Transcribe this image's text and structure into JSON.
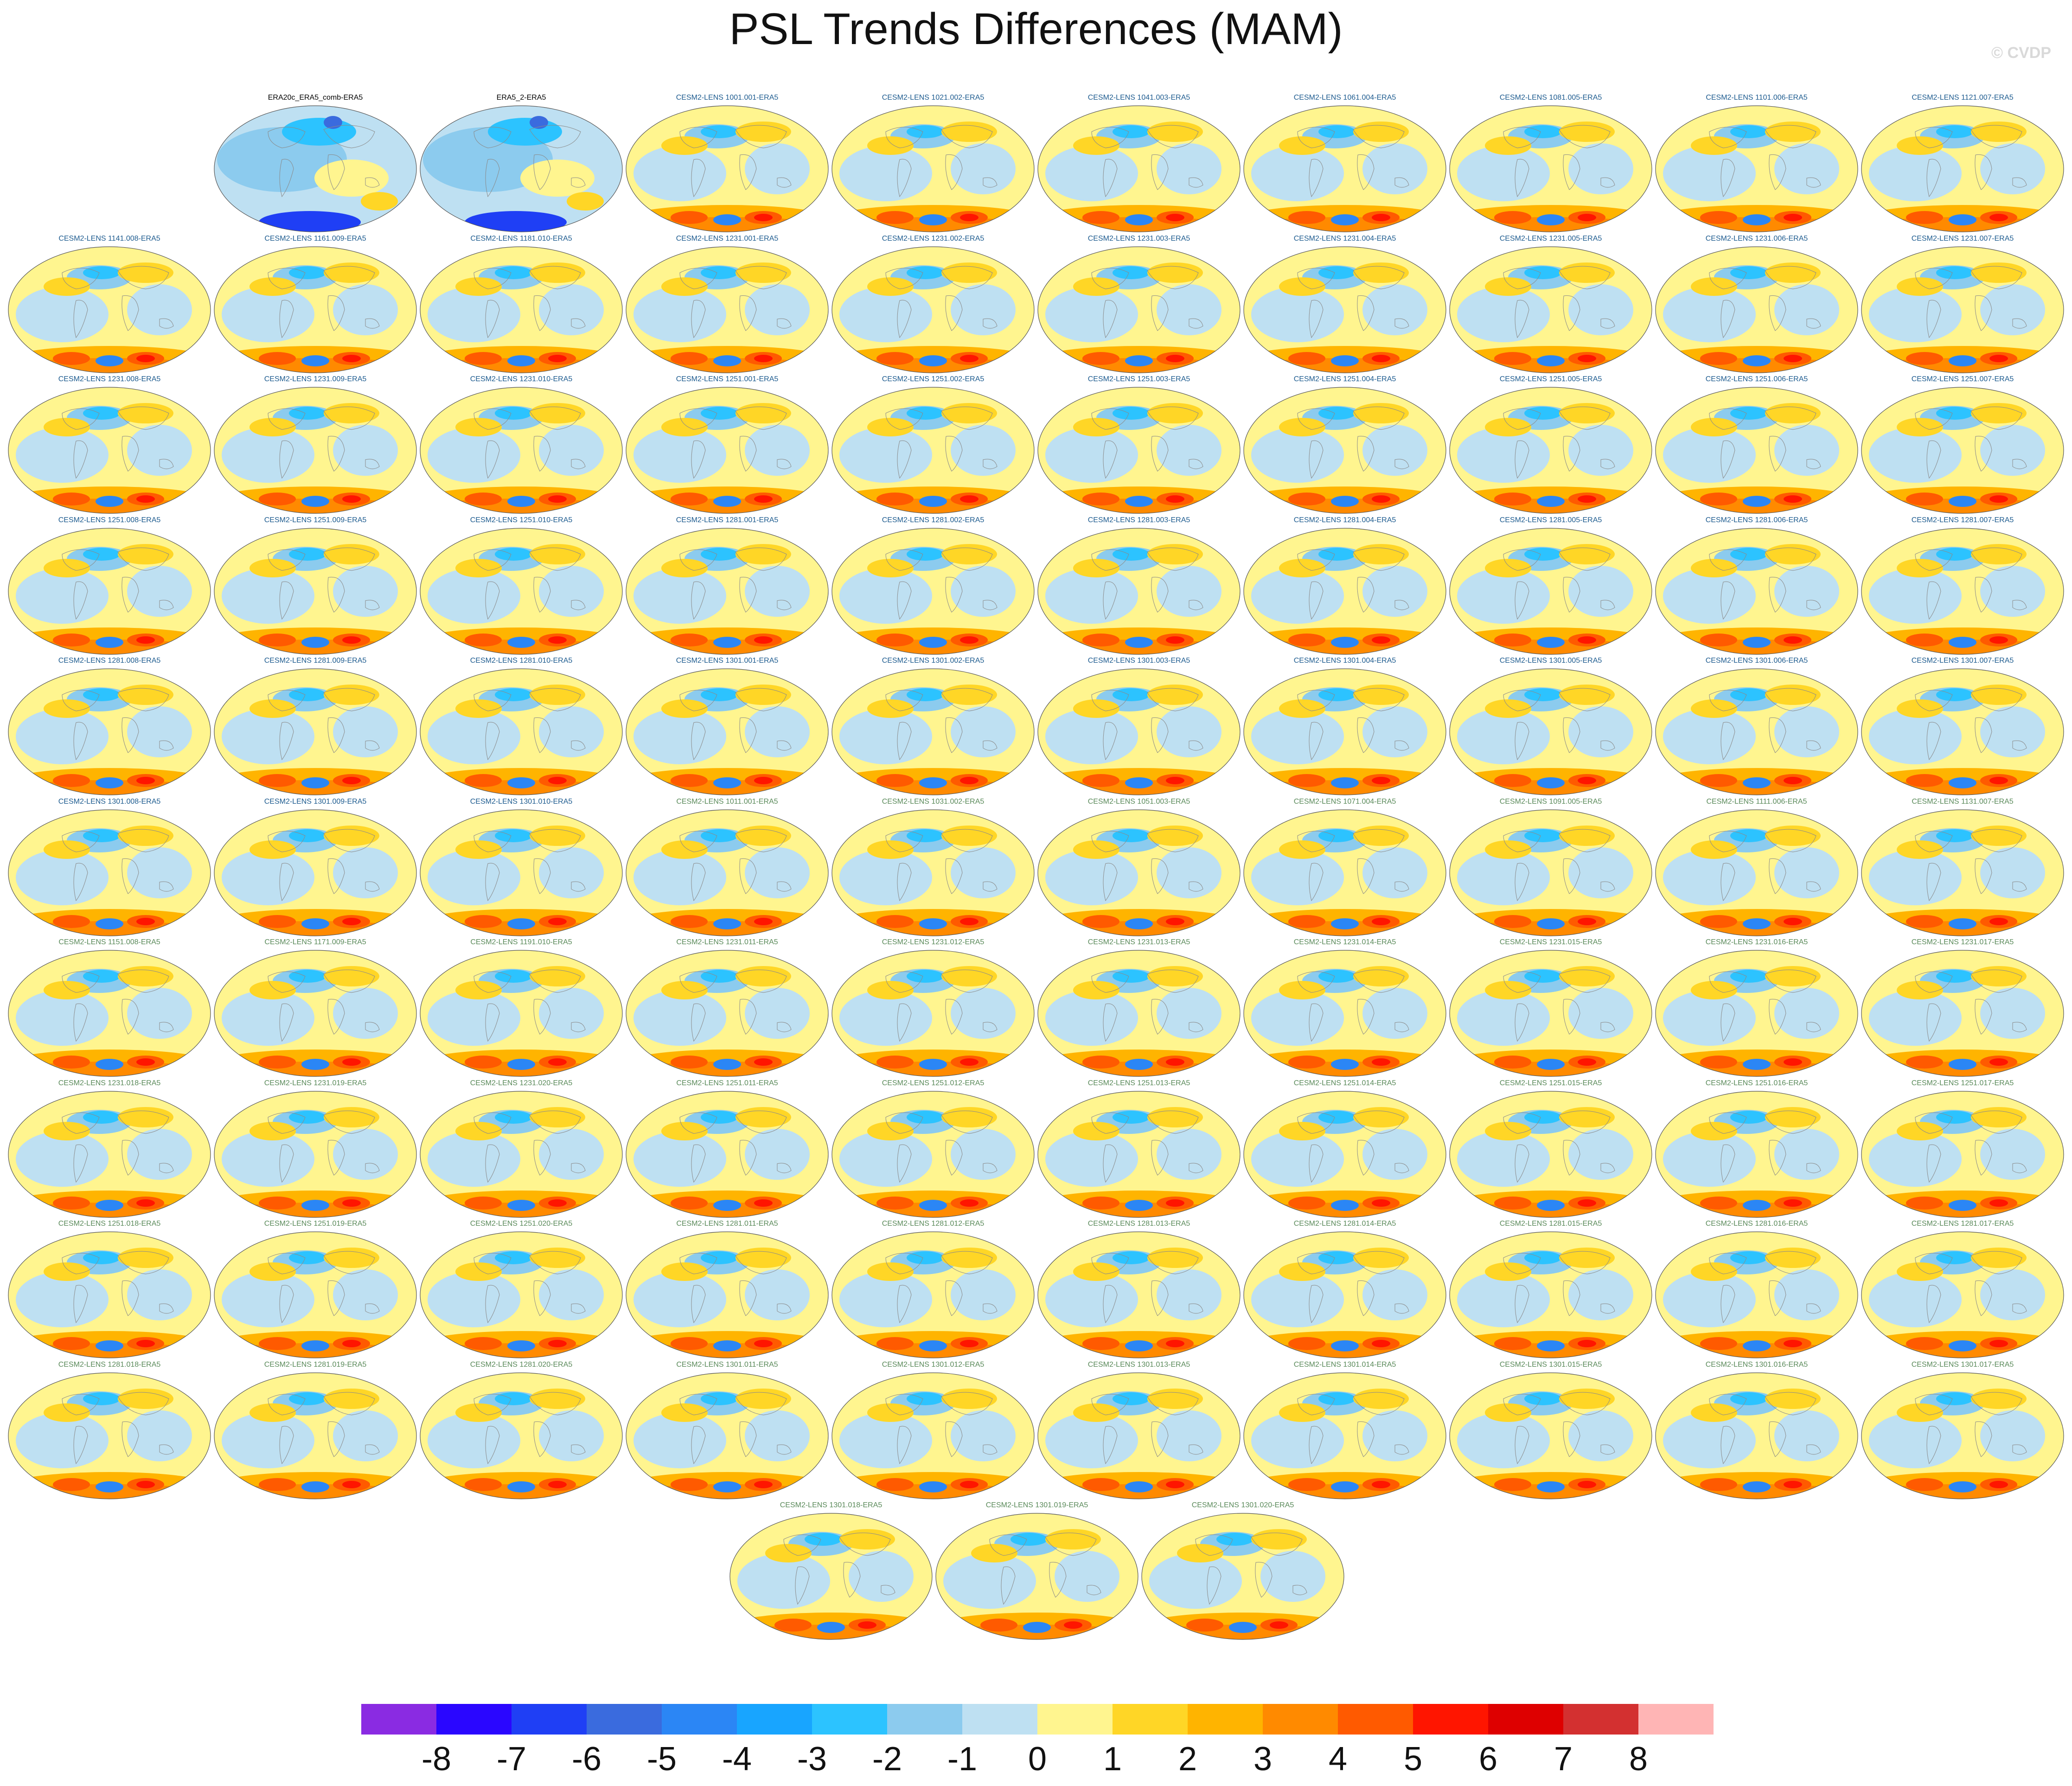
{
  "title": "PSL Trends Differences (MAM)",
  "watermark": "© CVDP",
  "colorbar": {
    "colors": [
      "#8a2be2",
      "#2a06ff",
      "#1f3ff5",
      "#3a6bde",
      "#2b86f5",
      "#18a5ff",
      "#2cc3ff",
      "#8ccbee",
      "#bee0f2",
      "#fff58f",
      "#ffd626",
      "#ffb400",
      "#ff8a00",
      "#ff5a00",
      "#ff1500",
      "#de0000",
      "#d33030",
      "#ffb5b5"
    ],
    "labels": [
      "-8",
      "-7",
      "-6",
      "-5",
      "-4",
      "-3",
      "-2",
      "-1",
      "0",
      "1",
      "2",
      "3",
      "4",
      "5",
      "6",
      "7",
      "8"
    ]
  },
  "panels": [
    {
      "label": "ERA20c_ERA5_comb-ERA5",
      "color": "#000000"
    },
    {
      "label": "ERA5_2-ERA5",
      "color": "#000000"
    },
    {
      "label": "CESM2-LENS 1001.001-ERA5",
      "color": "#1d5b8f"
    },
    {
      "label": "CESM2-LENS 1021.002-ERA5",
      "color": "#1d5b8f"
    },
    {
      "label": "CESM2-LENS 1041.003-ERA5",
      "color": "#1d5b8f"
    },
    {
      "label": "CESM2-LENS 1061.004-ERA5",
      "color": "#1d5b8f"
    },
    {
      "label": "CESM2-LENS 1081.005-ERA5",
      "color": "#1d5b8f"
    },
    {
      "label": "CESM2-LENS 1101.006-ERA5",
      "color": "#1d5b8f"
    },
    {
      "label": "CESM2-LENS 1121.007-ERA5",
      "color": "#1d5b8f"
    },
    {
      "label": "CESM2-LENS 1141.008-ERA5",
      "color": "#1d5b8f"
    },
    {
      "label": "CESM2-LENS 1161.009-ERA5",
      "color": "#1d5b8f"
    },
    {
      "label": "CESM2-LENS 1181.010-ERA5",
      "color": "#1d5b8f"
    },
    {
      "label": "CESM2-LENS 1231.001-ERA5",
      "color": "#1d5b8f"
    },
    {
      "label": "CESM2-LENS 1231.002-ERA5",
      "color": "#1d5b8f"
    },
    {
      "label": "CESM2-LENS 1231.003-ERA5",
      "color": "#1d5b8f"
    },
    {
      "label": "CESM2-LENS 1231.004-ERA5",
      "color": "#1d5b8f"
    },
    {
      "label": "CESM2-LENS 1231.005-ERA5",
      "color": "#1d5b8f"
    },
    {
      "label": "CESM2-LENS 1231.006-ERA5",
      "color": "#1d5b8f"
    },
    {
      "label": "CESM2-LENS 1231.007-ERA5",
      "color": "#1d5b8f"
    },
    {
      "label": "CESM2-LENS 1231.008-ERA5",
      "color": "#1d5b8f"
    },
    {
      "label": "CESM2-LENS 1231.009-ERA5",
      "color": "#1d5b8f"
    },
    {
      "label": "CESM2-LENS 1231.010-ERA5",
      "color": "#1d5b8f"
    },
    {
      "label": "CESM2-LENS 1251.001-ERA5",
      "color": "#1d5b8f"
    },
    {
      "label": "CESM2-LENS 1251.002-ERA5",
      "color": "#1d5b8f"
    },
    {
      "label": "CESM2-LENS 1251.003-ERA5",
      "color": "#1d5b8f"
    },
    {
      "label": "CESM2-LENS 1251.004-ERA5",
      "color": "#1d5b8f"
    },
    {
      "label": "CESM2-LENS 1251.005-ERA5",
      "color": "#1d5b8f"
    },
    {
      "label": "CESM2-LENS 1251.006-ERA5",
      "color": "#1d5b8f"
    },
    {
      "label": "CESM2-LENS 1251.007-ERA5",
      "color": "#1d5b8f"
    },
    {
      "label": "CESM2-LENS 1251.008-ERA5",
      "color": "#1d5b8f"
    },
    {
      "label": "CESM2-LENS 1251.009-ERA5",
      "color": "#1d5b8f"
    },
    {
      "label": "CESM2-LENS 1251.010-ERA5",
      "color": "#1d5b8f"
    },
    {
      "label": "CESM2-LENS 1281.001-ERA5",
      "color": "#1d5b8f"
    },
    {
      "label": "CESM2-LENS 1281.002-ERA5",
      "color": "#1d5b8f"
    },
    {
      "label": "CESM2-LENS 1281.003-ERA5",
      "color": "#1d5b8f"
    },
    {
      "label": "CESM2-LENS 1281.004-ERA5",
      "color": "#1d5b8f"
    },
    {
      "label": "CESM2-LENS 1281.005-ERA5",
      "color": "#1d5b8f"
    },
    {
      "label": "CESM2-LENS 1281.006-ERA5",
      "color": "#1d5b8f"
    },
    {
      "label": "CESM2-LENS 1281.007-ERA5",
      "color": "#1d5b8f"
    },
    {
      "label": "CESM2-LENS 1281.008-ERA5",
      "color": "#1d5b8f"
    },
    {
      "label": "CESM2-LENS 1281.009-ERA5",
      "color": "#1d5b8f"
    },
    {
      "label": "CESM2-LENS 1281.010-ERA5",
      "color": "#1d5b8f"
    },
    {
      "label": "CESM2-LENS 1301.001-ERA5",
      "color": "#1d5b8f"
    },
    {
      "label": "CESM2-LENS 1301.002-ERA5",
      "color": "#1d5b8f"
    },
    {
      "label": "CESM2-LENS 1301.003-ERA5",
      "color": "#1d5b8f"
    },
    {
      "label": "CESM2-LENS 1301.004-ERA5",
      "color": "#1d5b8f"
    },
    {
      "label": "CESM2-LENS 1301.005-ERA5",
      "color": "#1d5b8f"
    },
    {
      "label": "CESM2-LENS 1301.006-ERA5",
      "color": "#1d5b8f"
    },
    {
      "label": "CESM2-LENS 1301.007-ERA5",
      "color": "#1d5b8f"
    },
    {
      "label": "CESM2-LENS 1301.008-ERA5",
      "color": "#1d5b8f"
    },
    {
      "label": "CESM2-LENS 1301.009-ERA5",
      "color": "#1d5b8f"
    },
    {
      "label": "CESM2-LENS 1301.010-ERA5",
      "color": "#1d5b8f"
    },
    {
      "label": "CESM2-LENS 1011.001-ERA5",
      "color": "#5a8a5a"
    },
    {
      "label": "CESM2-LENS 1031.002-ERA5",
      "color": "#5a8a5a"
    },
    {
      "label": "CESM2-LENS 1051.003-ERA5",
      "color": "#5a8a5a"
    },
    {
      "label": "CESM2-LENS 1071.004-ERA5",
      "color": "#5a8a5a"
    },
    {
      "label": "CESM2-LENS 1091.005-ERA5",
      "color": "#5a8a5a"
    },
    {
      "label": "CESM2-LENS 1111.006-ERA5",
      "color": "#5a8a5a"
    },
    {
      "label": "CESM2-LENS 1131.007-ERA5",
      "color": "#5a8a5a"
    },
    {
      "label": "CESM2-LENS 1151.008-ERA5",
      "color": "#5a8a5a"
    },
    {
      "label": "CESM2-LENS 1171.009-ERA5",
      "color": "#5a8a5a"
    },
    {
      "label": "CESM2-LENS 1191.010-ERA5",
      "color": "#5a8a5a"
    },
    {
      "label": "CESM2-LENS 1231.011-ERA5",
      "color": "#5a8a5a"
    },
    {
      "label": "CESM2-LENS 1231.012-ERA5",
      "color": "#5a8a5a"
    },
    {
      "label": "CESM2-LENS 1231.013-ERA5",
      "color": "#5a8a5a"
    },
    {
      "label": "CESM2-LENS 1231.014-ERA5",
      "color": "#5a8a5a"
    },
    {
      "label": "CESM2-LENS 1231.015-ERA5",
      "color": "#5a8a5a"
    },
    {
      "label": "CESM2-LENS 1231.016-ERA5",
      "color": "#5a8a5a"
    },
    {
      "label": "CESM2-LENS 1231.017-ERA5",
      "color": "#5a8a5a"
    },
    {
      "label": "CESM2-LENS 1231.018-ERA5",
      "color": "#5a8a5a"
    },
    {
      "label": "CESM2-LENS 1231.019-ERA5",
      "color": "#5a8a5a"
    },
    {
      "label": "CESM2-LENS 1231.020-ERA5",
      "color": "#5a8a5a"
    },
    {
      "label": "CESM2-LENS 1251.011-ERA5",
      "color": "#5a8a5a"
    },
    {
      "label": "CESM2-LENS 1251.012-ERA5",
      "color": "#5a8a5a"
    },
    {
      "label": "CESM2-LENS 1251.013-ERA5",
      "color": "#5a8a5a"
    },
    {
      "label": "CESM2-LENS 1251.014-ERA5",
      "color": "#5a8a5a"
    },
    {
      "label": "CESM2-LENS 1251.015-ERA5",
      "color": "#5a8a5a"
    },
    {
      "label": "CESM2-LENS 1251.016-ERA5",
      "color": "#5a8a5a"
    },
    {
      "label": "CESM2-LENS 1251.017-ERA5",
      "color": "#5a8a5a"
    },
    {
      "label": "CESM2-LENS 1251.018-ERA5",
      "color": "#5a8a5a"
    },
    {
      "label": "CESM2-LENS 1251.019-ERA5",
      "color": "#5a8a5a"
    },
    {
      "label": "CESM2-LENS 1251.020-ERA5",
      "color": "#5a8a5a"
    },
    {
      "label": "CESM2-LENS 1281.011-ERA5",
      "color": "#5a8a5a"
    },
    {
      "label": "CESM2-LENS 1281.012-ERA5",
      "color": "#5a8a5a"
    },
    {
      "label": "CESM2-LENS 1281.013-ERA5",
      "color": "#5a8a5a"
    },
    {
      "label": "CESM2-LENS 1281.014-ERA5",
      "color": "#5a8a5a"
    },
    {
      "label": "CESM2-LENS 1281.015-ERA5",
      "color": "#5a8a5a"
    },
    {
      "label": "CESM2-LENS 1281.016-ERA5",
      "color": "#5a8a5a"
    },
    {
      "label": "CESM2-LENS 1281.017-ERA5",
      "color": "#5a8a5a"
    },
    {
      "label": "CESM2-LENS 1281.018-ERA5",
      "color": "#5a8a5a"
    },
    {
      "label": "CESM2-LENS 1281.019-ERA5",
      "color": "#5a8a5a"
    },
    {
      "label": "CESM2-LENS 1281.020-ERA5",
      "color": "#5a8a5a"
    },
    {
      "label": "CESM2-LENS 1301.011-ERA5",
      "color": "#5a8a5a"
    },
    {
      "label": "CESM2-LENS 1301.012-ERA5",
      "color": "#5a8a5a"
    },
    {
      "label": "CESM2-LENS 1301.013-ERA5",
      "color": "#5a8a5a"
    },
    {
      "label": "CESM2-LENS 1301.014-ERA5",
      "color": "#5a8a5a"
    },
    {
      "label": "CESM2-LENS 1301.015-ERA5",
      "color": "#5a8a5a"
    },
    {
      "label": "CESM2-LENS 1301.016-ERA5",
      "color": "#5a8a5a"
    },
    {
      "label": "CESM2-LENS 1301.017-ERA5",
      "color": "#5a8a5a"
    },
    {
      "label": "CESM2-LENS 1301.018-ERA5",
      "color": "#5a8a5a"
    },
    {
      "label": "CESM2-LENS 1301.019-ERA5",
      "color": "#5a8a5a"
    },
    {
      "label": "CESM2-LENS 1301.020-ERA5",
      "color": "#5a8a5a"
    }
  ]
}
